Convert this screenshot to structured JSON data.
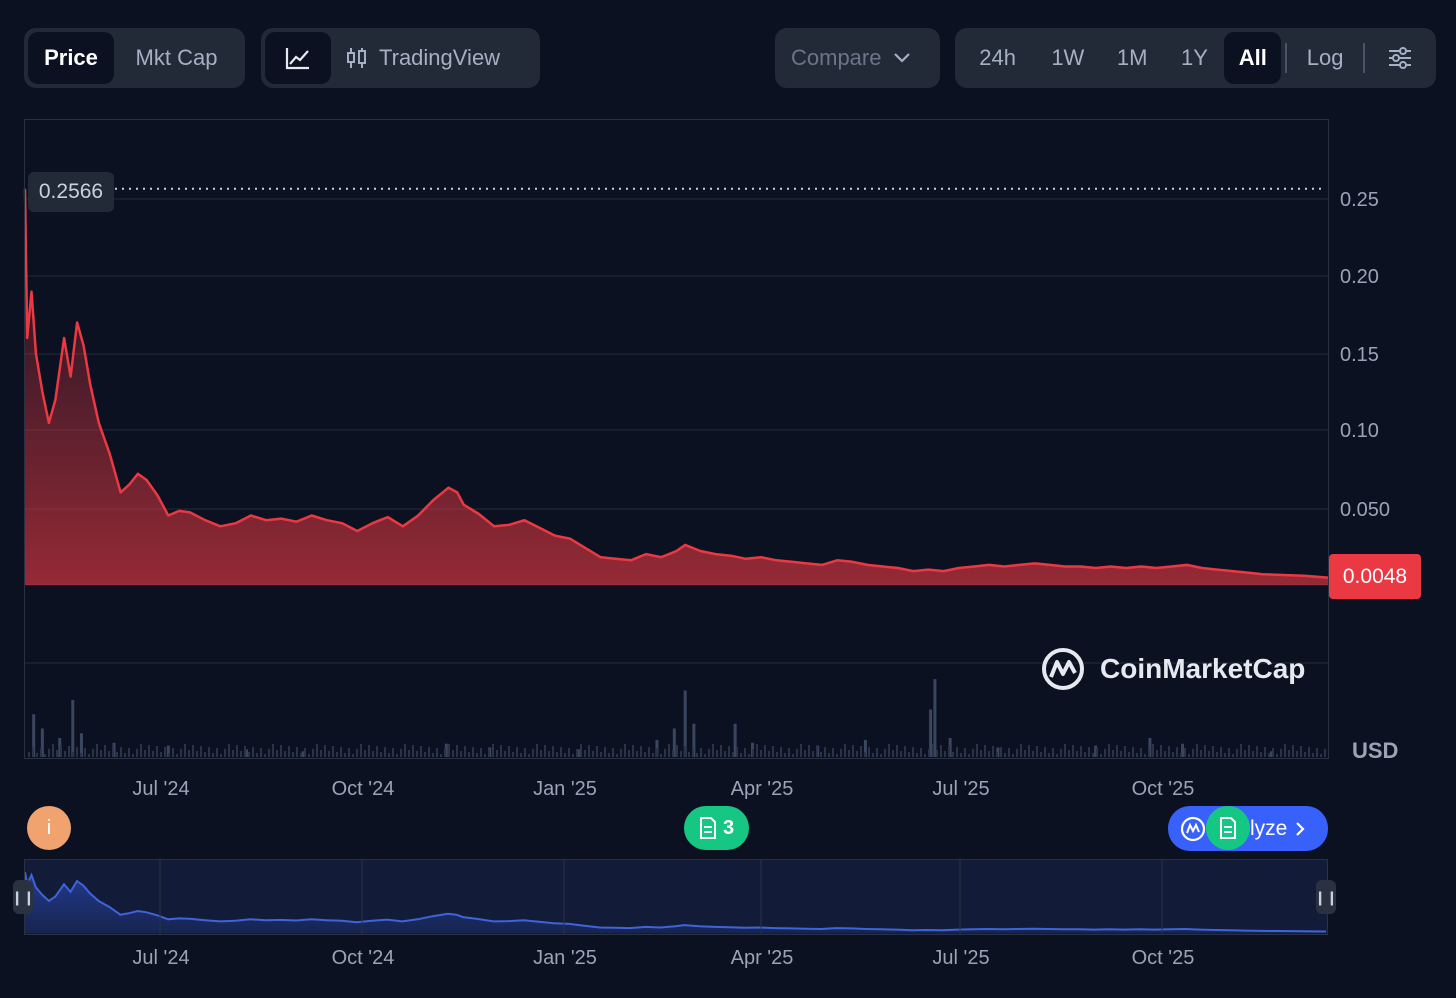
{
  "toolbar": {
    "metric_tabs": [
      "Price",
      "Mkt Cap"
    ],
    "active_metric": "Price",
    "chart_type_line_icon": "line-chart-icon",
    "tradingview_label": "TradingView",
    "tradingview_icon": "candlestick-icon",
    "compare_label": "Compare",
    "ranges": [
      "24h",
      "1W",
      "1M",
      "1Y",
      "All"
    ],
    "active_range": "All",
    "log_label": "Log",
    "settings_icon": "sliders-icon"
  },
  "price_tag": "0.0048",
  "high_tag": "0.2566",
  "currency_label": "USD",
  "watermark": "CoinMarketCap",
  "events": {
    "info_label": "i",
    "news_count": "3",
    "analyze_label": "lyze"
  },
  "colors": {
    "background": "#0b1120",
    "line": "#ea3943",
    "navigator_line": "#3f63d9",
    "accent_blue": "#3861fb",
    "green": "#16c784"
  },
  "chart_data": {
    "type": "area",
    "title": "",
    "xlabel": "",
    "ylabel": "",
    "y_tick_labels": [
      "0.25",
      "0.20",
      "0.15",
      "0.10",
      "0.050"
    ],
    "x_tick_labels": [
      "Jul '24",
      "Oct '24",
      "Jan '25",
      "Apr '25",
      "Jul '25",
      "Oct '25"
    ],
    "x_range": [
      "2024-05-10",
      "2025-12-31"
    ],
    "grid": true,
    "series": [
      {
        "values": [
          [
            "2024-05-10",
            0.2566
          ],
          [
            "2024-05-11",
            0.16
          ],
          [
            "2024-05-13",
            0.19
          ],
          [
            "2024-05-15",
            0.15
          ],
          [
            "2024-05-18",
            0.125
          ],
          [
            "2024-05-21",
            0.105
          ],
          [
            "2024-05-24",
            0.12
          ],
          [
            "2024-05-28",
            0.16
          ],
          [
            "2024-05-31",
            0.135
          ],
          [
            "2024-06-03",
            0.17
          ],
          [
            "2024-06-06",
            0.155
          ],
          [
            "2024-06-09",
            0.13
          ],
          [
            "2024-06-13",
            0.105
          ],
          [
            "2024-06-18",
            0.085
          ],
          [
            "2024-06-23",
            0.06
          ],
          [
            "2024-06-27",
            0.065
          ],
          [
            "2024-07-01",
            0.072
          ],
          [
            "2024-07-05",
            0.068
          ],
          [
            "2024-07-10",
            0.058
          ],
          [
            "2024-07-15",
            0.045
          ],
          [
            "2024-07-20",
            0.048
          ],
          [
            "2024-07-25",
            0.047
          ],
          [
            "2024-08-01",
            0.042
          ],
          [
            "2024-08-08",
            0.038
          ],
          [
            "2024-08-15",
            0.04
          ],
          [
            "2024-08-22",
            0.045
          ],
          [
            "2024-08-29",
            0.042
          ],
          [
            "2024-09-05",
            0.043
          ],
          [
            "2024-09-12",
            0.041
          ],
          [
            "2024-09-19",
            0.045
          ],
          [
            "2024-09-26",
            0.042
          ],
          [
            "2024-10-03",
            0.04
          ],
          [
            "2024-10-10",
            0.035
          ],
          [
            "2024-10-17",
            0.04
          ],
          [
            "2024-10-24",
            0.044
          ],
          [
            "2024-10-31",
            0.038
          ],
          [
            "2024-11-07",
            0.045
          ],
          [
            "2024-11-14",
            0.055
          ],
          [
            "2024-11-21",
            0.063
          ],
          [
            "2024-11-25",
            0.06
          ],
          [
            "2024-11-28",
            0.052
          ],
          [
            "2024-12-05",
            0.046
          ],
          [
            "2024-12-12",
            0.038
          ],
          [
            "2024-12-19",
            0.039
          ],
          [
            "2024-12-26",
            0.042
          ],
          [
            "2025-01-02",
            0.037
          ],
          [
            "2025-01-09",
            0.032
          ],
          [
            "2025-01-16",
            0.03
          ],
          [
            "2025-01-23",
            0.024
          ],
          [
            "2025-01-30",
            0.018
          ],
          [
            "2025-02-06",
            0.017
          ],
          [
            "2025-02-13",
            0.016
          ],
          [
            "2025-02-20",
            0.02
          ],
          [
            "2025-02-27",
            0.018
          ],
          [
            "2025-03-06",
            0.022
          ],
          [
            "2025-03-10",
            0.026
          ],
          [
            "2025-03-17",
            0.022
          ],
          [
            "2025-03-24",
            0.02
          ],
          [
            "2025-03-31",
            0.019
          ],
          [
            "2025-04-07",
            0.017
          ],
          [
            "2025-04-14",
            0.018
          ],
          [
            "2025-04-21",
            0.016
          ],
          [
            "2025-04-28",
            0.015
          ],
          [
            "2025-05-05",
            0.014
          ],
          [
            "2025-05-12",
            0.013
          ],
          [
            "2025-05-19",
            0.016
          ],
          [
            "2025-05-26",
            0.015
          ],
          [
            "2025-06-02",
            0.013
          ],
          [
            "2025-06-09",
            0.012
          ],
          [
            "2025-06-16",
            0.011
          ],
          [
            "2025-06-23",
            0.009
          ],
          [
            "2025-06-30",
            0.01
          ],
          [
            "2025-07-07",
            0.009
          ],
          [
            "2025-07-14",
            0.011
          ],
          [
            "2025-07-21",
            0.012
          ],
          [
            "2025-07-28",
            0.013
          ],
          [
            "2025-08-04",
            0.012
          ],
          [
            "2025-08-11",
            0.013
          ],
          [
            "2025-08-18",
            0.014
          ],
          [
            "2025-08-25",
            0.013
          ],
          [
            "2025-09-01",
            0.012
          ],
          [
            "2025-09-08",
            0.012
          ],
          [
            "2025-09-15",
            0.011
          ],
          [
            "2025-09-22",
            0.012
          ],
          [
            "2025-09-29",
            0.011
          ],
          [
            "2025-10-06",
            0.012
          ],
          [
            "2025-10-13",
            0.011
          ],
          [
            "2025-10-20",
            0.012
          ],
          [
            "2025-10-27",
            0.013
          ],
          [
            "2025-11-03",
            0.011
          ],
          [
            "2025-11-10",
            0.01
          ],
          [
            "2025-11-17",
            0.009
          ],
          [
            "2025-11-24",
            0.008
          ],
          [
            "2025-12-01",
            0.007
          ],
          [
            "2025-12-10",
            0.0065
          ],
          [
            "2025-12-20",
            0.006
          ],
          [
            "2025-12-31",
            0.0048
          ]
        ]
      }
    ],
    "volume": {
      "type": "bar",
      "values": [
        [
          "2024-05-14",
          0.45
        ],
        [
          "2024-05-18",
          0.3
        ],
        [
          "2024-05-26",
          0.2
        ],
        [
          "2024-06-01",
          0.6
        ],
        [
          "2024-06-05",
          0.25
        ],
        [
          "2024-06-20",
          0.15
        ],
        [
          "2024-07-15",
          0.12
        ],
        [
          "2024-08-20",
          0.08
        ],
        [
          "2024-09-15",
          0.06
        ],
        [
          "2024-11-20",
          0.14
        ],
        [
          "2024-12-10",
          0.1
        ],
        [
          "2025-01-20",
          0.08
        ],
        [
          "2025-02-25",
          0.18
        ],
        [
          "2025-03-05",
          0.3
        ],
        [
          "2025-03-10",
          0.7
        ],
        [
          "2025-03-14",
          0.35
        ],
        [
          "2025-04-02",
          0.35
        ],
        [
          "2025-04-10",
          0.15
        ],
        [
          "2025-05-10",
          0.12
        ],
        [
          "2025-06-01",
          0.18
        ],
        [
          "2025-07-01",
          0.5
        ],
        [
          "2025-07-03",
          0.82
        ],
        [
          "2025-07-10",
          0.2
        ],
        [
          "2025-08-01",
          0.1
        ],
        [
          "2025-09-15",
          0.12
        ],
        [
          "2025-10-10",
          0.2
        ],
        [
          "2025-10-25",
          0.14
        ],
        [
          "2025-12-05",
          0.06
        ]
      ]
    }
  }
}
